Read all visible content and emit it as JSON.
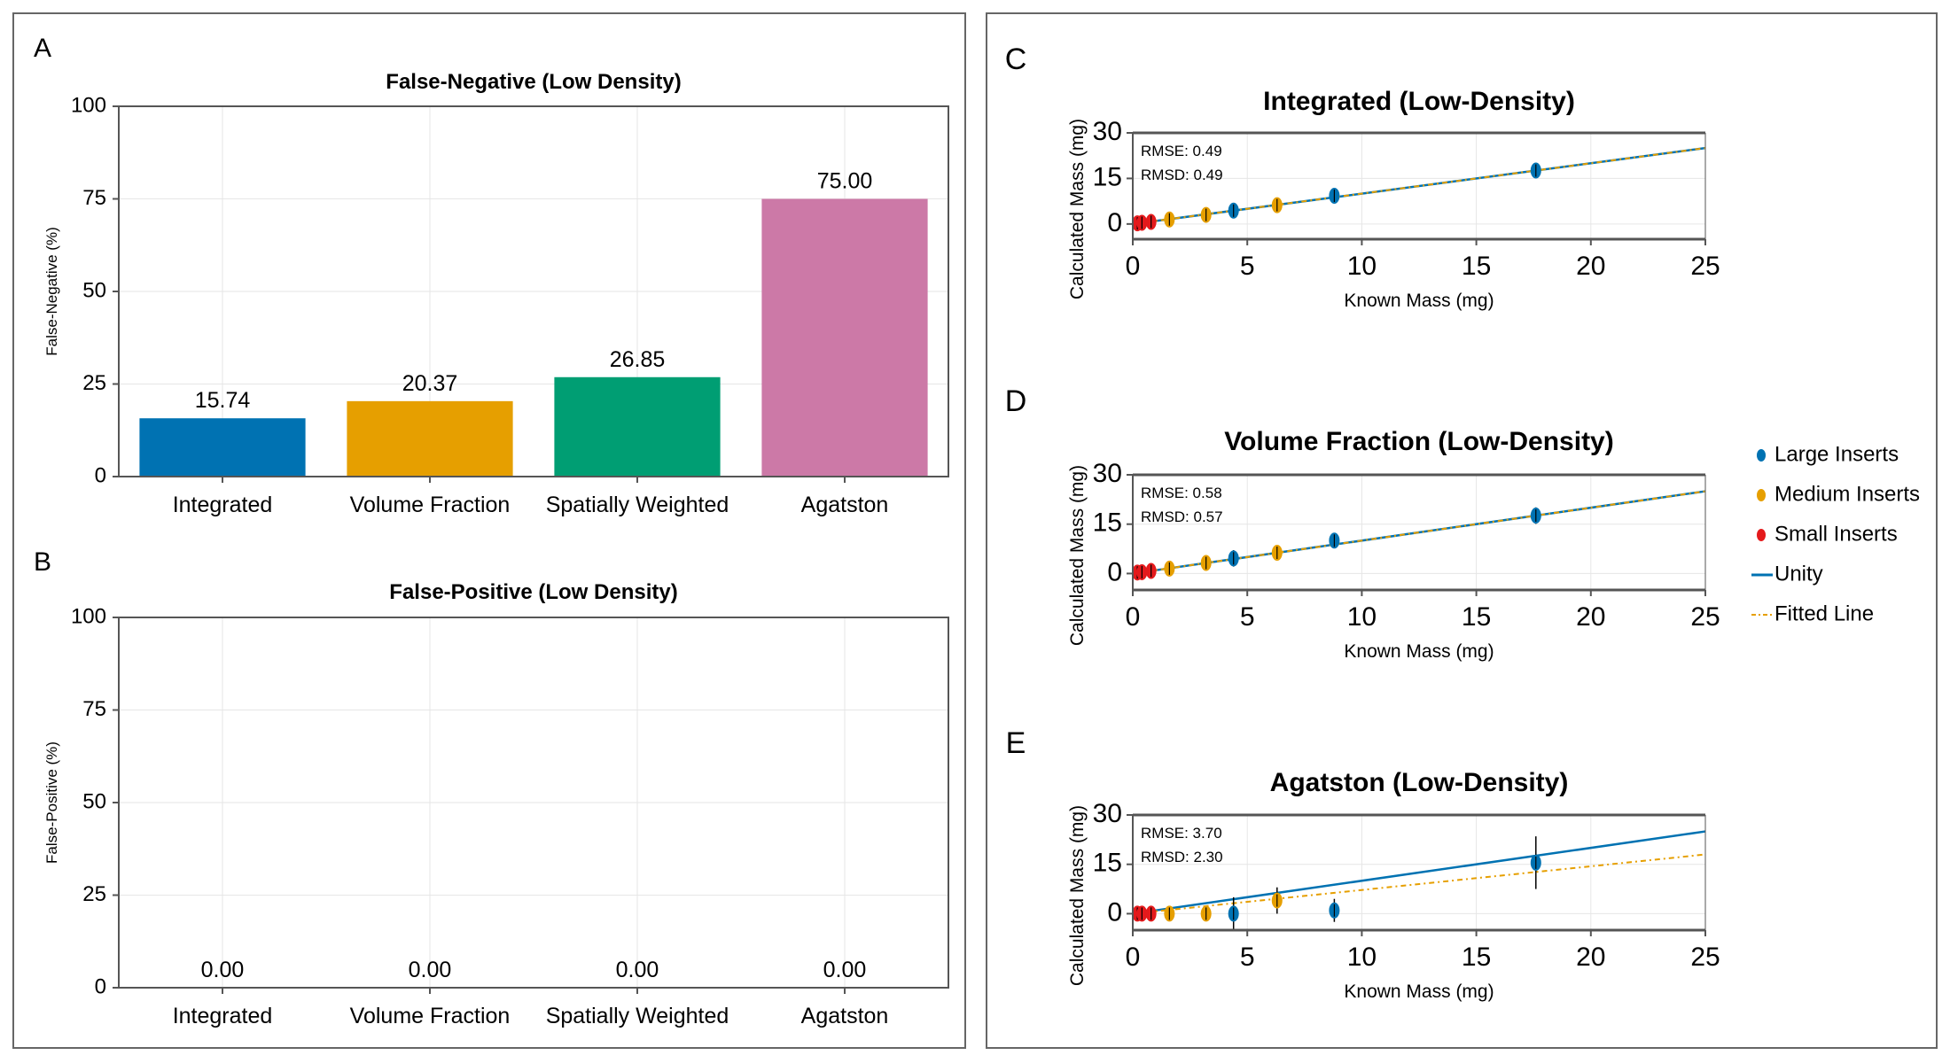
{
  "colors": {
    "blue": "#0072b2",
    "orange": "#e69f00",
    "green": "#009e73",
    "pink": "#cc79a7",
    "red": "#e41a1c",
    "axis": "#555555",
    "grid": "#e6e6e6",
    "errorbar": "#000000"
  },
  "chart_data": [
    {
      "panel": "A",
      "type": "bar",
      "title": "False-Negative (Low Density)",
      "ylabel": "False-Negative (%)",
      "xlabel": "",
      "categories": [
        "Integrated",
        "Volume Fraction",
        "Spatially Weighted",
        "Agatston"
      ],
      "values": [
        15.74,
        20.37,
        26.85,
        75.0
      ],
      "value_labels": [
        "15.74",
        "20.37",
        "26.85",
        "75.00"
      ],
      "bar_colors": [
        "#0072b2",
        "#e69f00",
        "#009e73",
        "#cc79a7"
      ],
      "ylim": [
        0,
        100
      ],
      "yticks": [
        0,
        25,
        50,
        75,
        100
      ],
      "grid": true
    },
    {
      "panel": "B",
      "type": "bar",
      "title": "False-Positive (Low Density)",
      "ylabel": "False-Positive (%)",
      "xlabel": "",
      "categories": [
        "Integrated",
        "Volume Fraction",
        "Spatially Weighted",
        "Agatston"
      ],
      "values": [
        0,
        0,
        0,
        0
      ],
      "value_labels": [
        "0.00",
        "0.00",
        "0.00",
        "0.00"
      ],
      "bar_colors": [
        "#0072b2",
        "#e69f00",
        "#009e73",
        "#cc79a7"
      ],
      "ylim": [
        0,
        100
      ],
      "yticks": [
        0,
        25,
        50,
        75,
        100
      ],
      "grid": true
    },
    {
      "panel": "C",
      "type": "scatter",
      "title": "Integrated (Low-Density)",
      "xlabel": "Known Mass (mg)",
      "ylabel": "Calculated Mass (mg)",
      "xlim": [
        0,
        25
      ],
      "ylim": [
        -5,
        30
      ],
      "xticks": [
        0,
        5,
        10,
        15,
        20,
        25
      ],
      "yticks": [
        0,
        15,
        30
      ],
      "annotations": [
        "RMSE: 0.49",
        "RMSD: 0.49"
      ],
      "fit": {
        "slope": 1.0,
        "intercept": 0.0
      },
      "series": [
        {
          "name": "Large Inserts",
          "points": [
            {
              "x": 4.4,
              "y": 4.4,
              "err": 2.0
            },
            {
              "x": 8.8,
              "y": 9.3,
              "err": 2.0
            },
            {
              "x": 17.6,
              "y": 17.6,
              "err": 2.5
            }
          ]
        },
        {
          "name": "Medium Inserts",
          "points": [
            {
              "x": 1.6,
              "y": 1.5,
              "err": 1.5
            },
            {
              "x": 3.2,
              "y": 3.0,
              "err": 1.5
            },
            {
              "x": 6.3,
              "y": 6.2,
              "err": 1.5
            }
          ]
        },
        {
          "name": "Small Inserts",
          "points": [
            {
              "x": 0.2,
              "y": 0.2,
              "err": 1.0
            },
            {
              "x": 0.4,
              "y": 0.4,
              "err": 1.0
            },
            {
              "x": 0.8,
              "y": 0.7,
              "err": 1.0
            }
          ]
        }
      ]
    },
    {
      "panel": "D",
      "type": "scatter",
      "title": "Volume Fraction (Low-Density)",
      "xlabel": "Known Mass (mg)",
      "ylabel": "Calculated Mass (mg)",
      "xlim": [
        0,
        25
      ],
      "ylim": [
        -5,
        30
      ],
      "xticks": [
        0,
        5,
        10,
        15,
        20,
        25
      ],
      "yticks": [
        0,
        15,
        30
      ],
      "annotations": [
        "RMSE: 0.58",
        "RMSD: 0.57"
      ],
      "fit": {
        "slope": 1.0,
        "intercept": 0.0
      },
      "series": [
        {
          "name": "Large Inserts",
          "points": [
            {
              "x": 4.4,
              "y": 4.6,
              "err": 2.5
            },
            {
              "x": 8.8,
              "y": 10.0,
              "err": 2.0
            },
            {
              "x": 17.6,
              "y": 17.6,
              "err": 2.5
            }
          ]
        },
        {
          "name": "Medium Inserts",
          "points": [
            {
              "x": 1.6,
              "y": 1.5,
              "err": 1.5
            },
            {
              "x": 3.2,
              "y": 3.2,
              "err": 1.5
            },
            {
              "x": 6.3,
              "y": 6.3,
              "err": 1.5
            }
          ]
        },
        {
          "name": "Small Inserts",
          "points": [
            {
              "x": 0.2,
              "y": 0.3,
              "err": 1.0
            },
            {
              "x": 0.4,
              "y": 0.4,
              "err": 1.0
            },
            {
              "x": 0.8,
              "y": 0.8,
              "err": 1.0
            }
          ]
        }
      ]
    },
    {
      "panel": "E",
      "type": "scatter",
      "title": "Agatston (Low-Density)",
      "xlabel": "Known Mass (mg)",
      "ylabel": "Calculated Mass (mg)",
      "xlim": [
        0,
        25
      ],
      "ylim": [
        -5,
        30
      ],
      "xticks": [
        0,
        5,
        10,
        15,
        20,
        25
      ],
      "yticks": [
        0,
        15,
        30
      ],
      "annotations": [
        "RMSE: 3.70",
        "RMSD: 2.30"
      ],
      "fit": {
        "slope": 0.72,
        "intercept": 0.0
      },
      "series": [
        {
          "name": "Large Inserts",
          "points": [
            {
              "x": 4.4,
              "y": 0.0,
              "err": 5.0
            },
            {
              "x": 8.8,
              "y": 1.0,
              "err": 3.5
            },
            {
              "x": 17.6,
              "y": 15.5,
              "err": 8.0
            }
          ]
        },
        {
          "name": "Medium Inserts",
          "points": [
            {
              "x": 1.6,
              "y": 0.0,
              "err": 2.0
            },
            {
              "x": 3.2,
              "y": 0.0,
              "err": 2.0
            },
            {
              "x": 6.3,
              "y": 4.0,
              "err": 4.0
            }
          ]
        },
        {
          "name": "Small Inserts",
          "points": [
            {
              "x": 0.2,
              "y": 0.0,
              "err": 1.0
            },
            {
              "x": 0.4,
              "y": 0.0,
              "err": 1.0
            },
            {
              "x": 0.8,
              "y": 0.0,
              "err": 1.0
            }
          ]
        }
      ]
    }
  ],
  "legend": {
    "items": [
      {
        "label": "Large Inserts",
        "kind": "marker",
        "color": "#0072b2"
      },
      {
        "label": "Medium Inserts",
        "kind": "marker",
        "color": "#e69f00"
      },
      {
        "label": "Small Inserts",
        "kind": "marker",
        "color": "#e41a1c"
      },
      {
        "label": "Unity",
        "kind": "line",
        "color": "#0072b2"
      },
      {
        "label": "Fitted Line",
        "kind": "dashed",
        "color": "#e69f00"
      }
    ]
  }
}
